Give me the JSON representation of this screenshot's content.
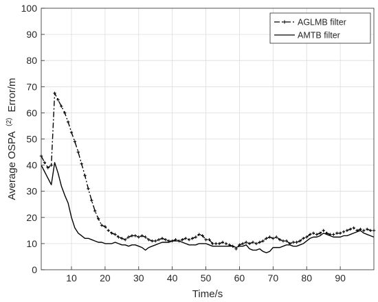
{
  "chart_data": {
    "type": "line",
    "xlabel": "Time/s",
    "ylabel_main": "Average OSPA",
    "ylabel_sup": "(2)",
    "ylabel_tail": "Error/m",
    "xlim": [
      1,
      100
    ],
    "ylim": [
      0,
      100
    ],
    "xticks": [
      10,
      20,
      30,
      40,
      50,
      60,
      70,
      80,
      90
    ],
    "yticks": [
      0,
      10,
      20,
      30,
      40,
      50,
      60,
      70,
      80,
      90,
      100
    ],
    "grid": true,
    "legend_position": "top-right",
    "series": [
      {
        "name": "AGLMB filter",
        "line_style": "dashdot",
        "marker": "plus",
        "color": "#000000",
        "x": [
          1,
          2,
          3,
          4,
          5,
          6,
          7,
          8,
          9,
          10,
          11,
          12,
          13,
          14,
          15,
          16,
          17,
          18,
          19,
          20,
          21,
          22,
          23,
          24,
          25,
          26,
          27,
          28,
          29,
          30,
          31,
          32,
          33,
          34,
          35,
          36,
          37,
          38,
          39,
          40,
          41,
          42,
          43,
          44,
          45,
          46,
          47,
          48,
          49,
          50,
          51,
          52,
          53,
          54,
          55,
          56,
          57,
          58,
          59,
          60,
          61,
          62,
          63,
          64,
          65,
          66,
          67,
          68,
          69,
          70,
          71,
          72,
          73,
          74,
          75,
          76,
          77,
          78,
          79,
          80,
          81,
          82,
          83,
          84,
          85,
          86,
          87,
          88,
          89,
          90,
          91,
          92,
          93,
          94,
          95,
          96,
          97,
          98,
          99,
          100
        ],
        "values": [
          43.5,
          41,
          39,
          40,
          67.5,
          65,
          62.5,
          60,
          56.5,
          52.5,
          49,
          45,
          40.5,
          36,
          31,
          26.5,
          22.5,
          19.5,
          17,
          16.5,
          15,
          14,
          13.5,
          12.5,
          12,
          11.5,
          12.5,
          13,
          13,
          12.5,
          13,
          12.5,
          11.5,
          11,
          11,
          11.5,
          12,
          11.5,
          11,
          11,
          11.5,
          11,
          11.5,
          12,
          11.5,
          12,
          12.5,
          13.5,
          13,
          11.5,
          11.5,
          10,
          10,
          10,
          10.5,
          10,
          9.5,
          9,
          8,
          9.5,
          10,
          10.5,
          10,
          10.5,
          10,
          10.5,
          11,
          12,
          12.5,
          12,
          12.5,
          11.5,
          11,
          11,
          10,
          10.5,
          10.5,
          11,
          12,
          12.5,
          13.5,
          14,
          13.5,
          14,
          15,
          14,
          13.5,
          13.5,
          14,
          14,
          14.5,
          15,
          15.5,
          16,
          15,
          15.5,
          15,
          15.5,
          15,
          15
        ]
      },
      {
        "name": "AMTB filter",
        "line_style": "solid",
        "marker": "none",
        "color": "#000000",
        "x": [
          1,
          2,
          3,
          4,
          5,
          6,
          7,
          8,
          9,
          10,
          11,
          12,
          13,
          14,
          15,
          16,
          17,
          18,
          19,
          20,
          21,
          22,
          23,
          24,
          25,
          26,
          27,
          28,
          29,
          30,
          31,
          32,
          33,
          34,
          35,
          36,
          37,
          38,
          39,
          40,
          41,
          42,
          43,
          44,
          45,
          46,
          47,
          48,
          49,
          50,
          51,
          52,
          53,
          54,
          55,
          56,
          57,
          58,
          59,
          60,
          61,
          62,
          63,
          64,
          65,
          66,
          67,
          68,
          69,
          70,
          71,
          72,
          73,
          74,
          75,
          76,
          77,
          78,
          79,
          80,
          81,
          82,
          83,
          84,
          85,
          86,
          87,
          88,
          89,
          90,
          91,
          92,
          93,
          94,
          95,
          96,
          97,
          98,
          99,
          100
        ],
        "values": [
          40,
          37.5,
          35,
          32.5,
          41,
          37,
          32,
          28.5,
          25.5,
          20,
          16,
          14,
          13,
          12,
          12,
          11.5,
          11,
          10.5,
          10.5,
          10,
          10,
          10,
          10.5,
          10,
          9.5,
          9.5,
          9,
          9.5,
          9.5,
          9,
          8.5,
          7.5,
          8.5,
          9,
          9.5,
          10,
          10.5,
          10.5,
          10.5,
          11,
          11,
          11,
          10.5,
          10,
          9.5,
          9.5,
          9.5,
          10,
          10,
          10,
          9.5,
          9,
          9,
          9,
          9,
          9,
          9,
          9,
          8.5,
          9,
          9,
          9.5,
          8,
          7.5,
          7.5,
          8,
          7,
          6.5,
          7,
          8.5,
          8.5,
          8.5,
          9,
          9.5,
          9.5,
          9,
          9,
          9.5,
          10,
          11,
          12,
          12.5,
          12.5,
          13,
          14,
          13.5,
          13,
          12.5,
          12.5,
          12.5,
          13,
          13,
          13.5,
          14,
          14.5,
          15,
          14,
          13.5,
          13,
          12.5
        ]
      }
    ]
  }
}
